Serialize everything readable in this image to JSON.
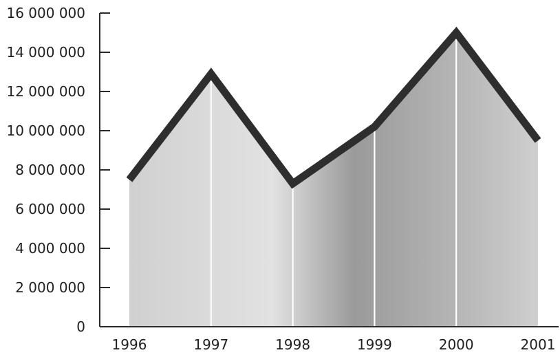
{
  "chart_data": {
    "type": "area",
    "title": "",
    "xlabel": "",
    "ylabel": "",
    "x": [
      "1996",
      "1997",
      "1998",
      "1999",
      "2000",
      "2001"
    ],
    "series": [
      {
        "values": [
          7500000,
          12900000,
          7300000,
          10200000,
          15000000,
          9500000
        ]
      }
    ],
    "ylim": [
      0,
      16000000
    ],
    "y_ticks": [
      0,
      2000000,
      4000000,
      6000000,
      8000000,
      10000000,
      12000000,
      14000000,
      16000000
    ],
    "y_tick_labels": [
      "0",
      "2 000 000",
      "4 000 000",
      "6 000 000",
      "8 000 000",
      "10 000 000",
      "12 000 000",
      "14 000 000",
      "16 000 000"
    ],
    "grid": false,
    "legend": "none",
    "colors": {
      "area_fill": "#c8c8c8",
      "line": "#2e2e2e",
      "axis": "#2a2a2a",
      "separator": "#ffffff"
    }
  }
}
